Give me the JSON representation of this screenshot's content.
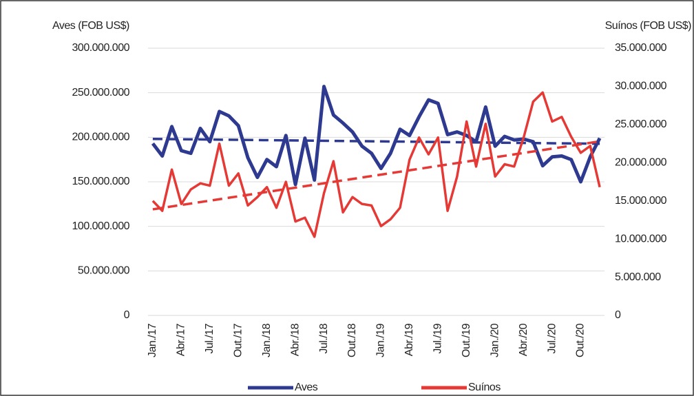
{
  "chart_data": {
    "type": "line",
    "y_label": "Aves (FOB US$)",
    "y2_label": "Suínos (FOB US$)",
    "categories": [
      "Jan./17",
      null,
      null,
      "Abr./17",
      null,
      null,
      "Jul./17",
      null,
      null,
      "Out./17",
      null,
      null,
      "Jan./18",
      null,
      null,
      "Abr./18",
      null,
      null,
      "Jul./18",
      null,
      null,
      "Out./18",
      null,
      null,
      "Jan./19",
      null,
      null,
      "Abr./19",
      null,
      null,
      "Jul./19",
      null,
      null,
      "Out./19",
      null,
      null,
      "Jan./20",
      null,
      null,
      "Abr./20",
      null,
      null,
      "Jul./20",
      null,
      null,
      "Out./20",
      null,
      null
    ],
    "series": [
      {
        "name": "Aves",
        "color": "#2e3a8f",
        "axis": "y",
        "values": [
          193000000,
          179000000,
          212000000,
          185000000,
          182000000,
          210000000,
          195000000,
          229000000,
          224000000,
          213000000,
          177000000,
          155000000,
          175000000,
          167000000,
          202000000,
          147000000,
          199000000,
          152000000,
          257000000,
          225000000,
          216000000,
          206000000,
          190000000,
          182000000,
          165000000,
          182000000,
          209000000,
          202000000,
          223000000,
          242000000,
          238000000,
          203000000,
          206000000,
          202000000,
          195000000,
          234000000,
          190000000,
          201000000,
          197000000,
          198000000,
          195000000,
          168000000,
          178000000,
          179000000,
          175000000,
          150000000,
          178000000,
          199000000
        ]
      },
      {
        "name": "Suínos",
        "color": "#e53935",
        "axis": "y2",
        "values": [
          15000000,
          13700000,
          19100000,
          14600000,
          16500000,
          17300000,
          17000000,
          22500000,
          17000000,
          18600000,
          14400000,
          15500000,
          16800000,
          14100000,
          17500000,
          12300000,
          12800000,
          10300000,
          16000000,
          20200000,
          13500000,
          15500000,
          14600000,
          14400000,
          11700000,
          12600000,
          14100000,
          20400000,
          23300000,
          21100000,
          23300000,
          13700000,
          18200000,
          25400000,
          19500000,
          25100000,
          18200000,
          19800000,
          19500000,
          23300000,
          28000000,
          29200000,
          25400000,
          26000000,
          23400000,
          21300000,
          22200000,
          16800000
        ]
      }
    ],
    "ylim": [
      0,
      300000000
    ],
    "yticks": [
      0,
      {
        "value": 50000000,
        "label": "50.000.000"
      },
      {
        "value": 100000000,
        "label": "100.000.000"
      },
      {
        "value": 150000000,
        "label": "150.000.000"
      },
      {
        "value": 200000000,
        "label": "200.000.000"
      },
      {
        "value": 250000000,
        "label": "250.000.000"
      },
      {
        "value": 300000000,
        "label": "300.000.000"
      }
    ],
    "y2lim": [
      0,
      35000000
    ],
    "y2ticks": [
      0,
      {
        "value": 5000000,
        "label": "5.000.000"
      },
      {
        "value": 10000000,
        "label": "10.000.000"
      },
      {
        "value": 15000000,
        "label": "15.000.000"
      },
      {
        "value": 20000000,
        "label": "20.000.000"
      },
      {
        "value": 25000000,
        "label": "25.000.000"
      },
      {
        "value": 30000000,
        "label": "30.000.000"
      },
      {
        "value": 35000000,
        "label": "35.000.000"
      }
    ],
    "grid": true,
    "trendline": true,
    "legend": "bottom"
  }
}
